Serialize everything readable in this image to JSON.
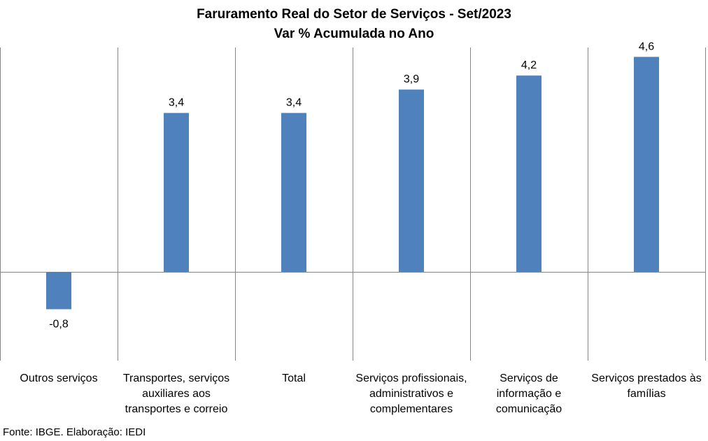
{
  "chart_data": {
    "type": "bar",
    "title": "Faruramento Real do Setor de Serviços - Set/2023",
    "subtitle": "Var % Acumulada no Ano",
    "categories": [
      [
        "Outros serviços"
      ],
      [
        "Transportes, serviços",
        "auxiliares aos",
        "transportes e correio"
      ],
      [
        "Total"
      ],
      [
        "Serviços profissionais,",
        "administrativos e",
        "complementares"
      ],
      [
        "Serviços de",
        "informação e",
        "comunicação"
      ],
      [
        "Serviços prestados às",
        "famílias"
      ]
    ],
    "values": [
      -0.8,
      3.4,
      3.4,
      3.9,
      4.2,
      4.6
    ],
    "value_labels": [
      "-0,8",
      "3,4",
      "3,4",
      "3,9",
      "4,2",
      "4,6"
    ],
    "ylim": [
      -1.9,
      4.8
    ],
    "bar_color": "#4F81BD",
    "grid": "vertical category separators",
    "legend": "none",
    "source": "Fonte: IBGE. Elaboração: IEDI"
  }
}
